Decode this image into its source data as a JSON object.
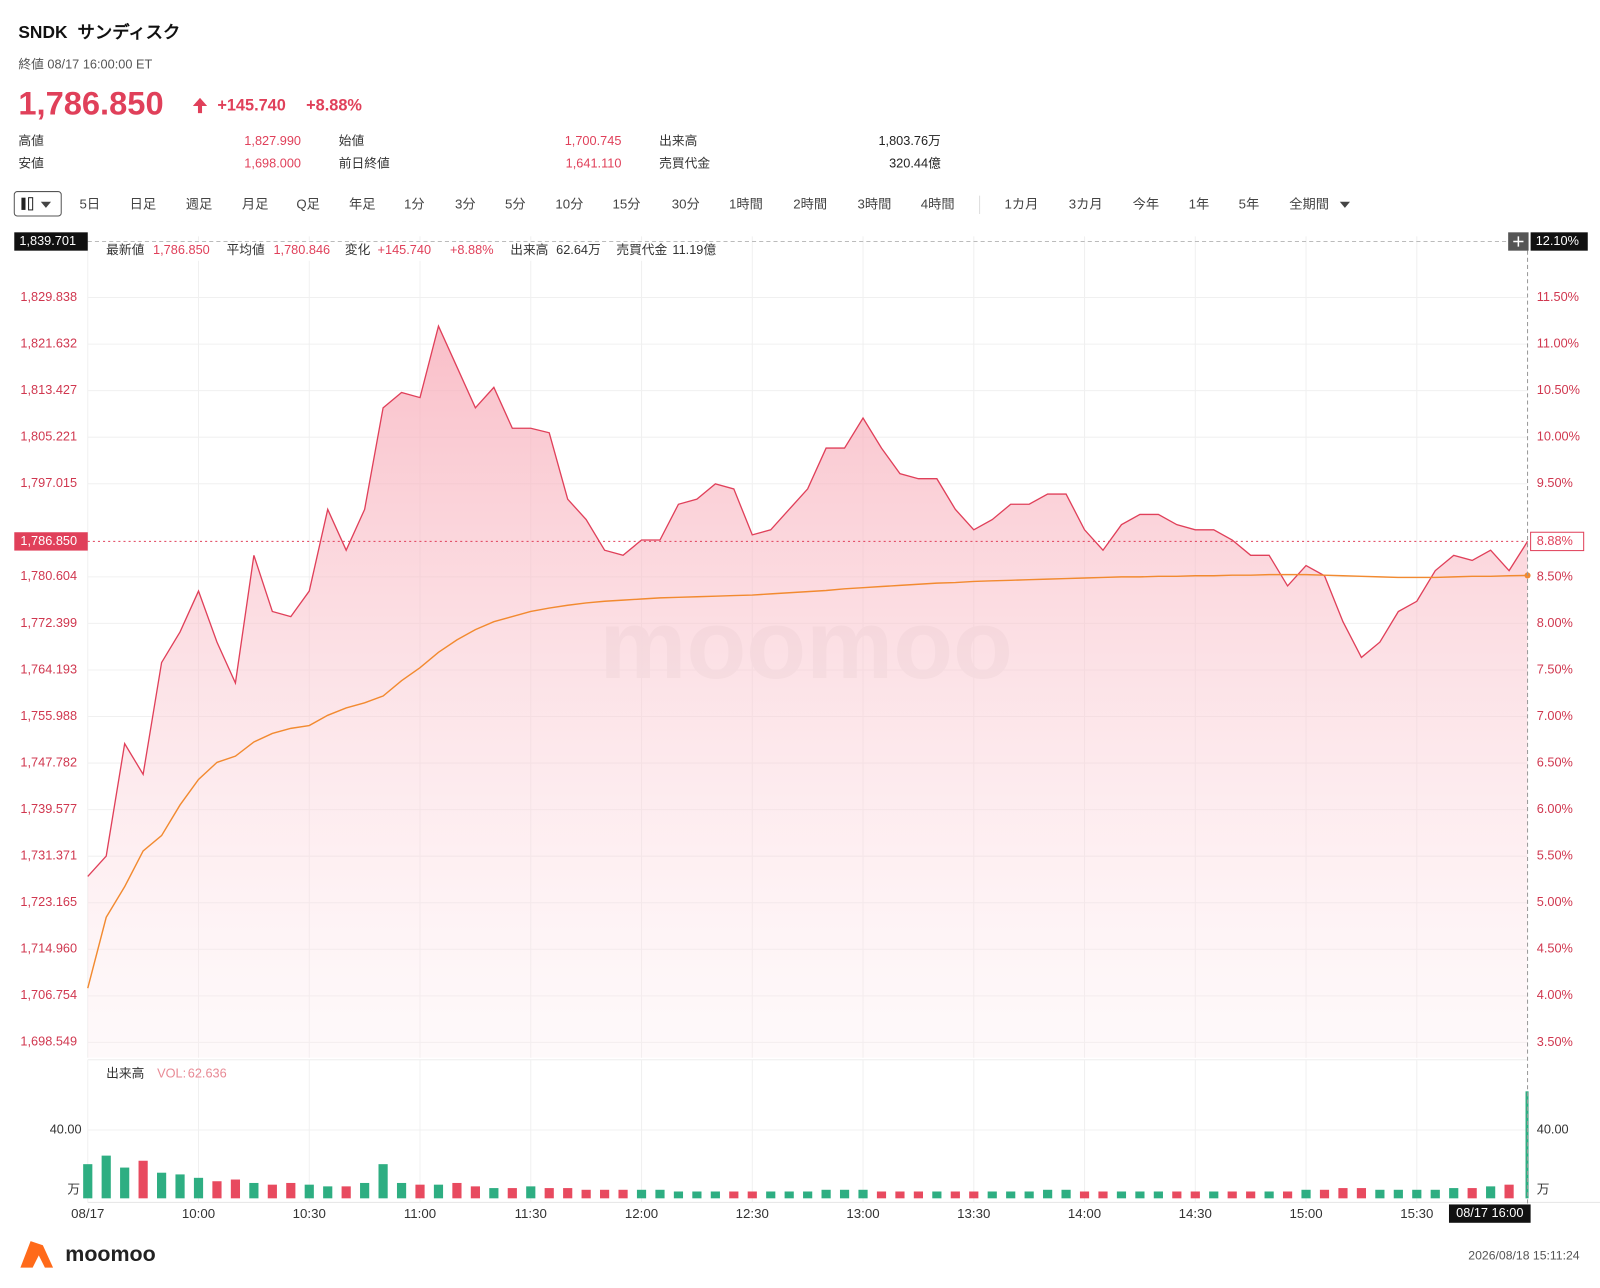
{
  "header": {
    "ticker": "SNDK",
    "name": "サンディスク",
    "status": "終値 08/17 16:00:00 ET",
    "price": "1,786.850",
    "change": "+145.740",
    "change_pct": "+8.88%"
  },
  "stats": [
    [
      {
        "label": "高値",
        "value": "1,827.990"
      },
      {
        "label": "始値",
        "value": "1,700.745"
      },
      {
        "label": "出来高",
        "value": "1,803.76万"
      }
    ],
    [
      {
        "label": "安値",
        "value": "1,698.000"
      },
      {
        "label": "前日終値",
        "value": "1,641.110"
      },
      {
        "label": "売買代金",
        "value": "320.44億"
      }
    ]
  ],
  "toolbar": {
    "intervals": [
      "5日",
      "日足",
      "週足",
      "月足",
      "Q足",
      "年足",
      "1分",
      "3分",
      "5分",
      "10分",
      "15分",
      "30分",
      "1時間",
      "2時間",
      "3時間",
      "4時間"
    ],
    "ranges": [
      "1カ月",
      "3カ月",
      "今年",
      "1年",
      "5年",
      "全期間"
    ]
  },
  "crosshair": {
    "price": "1,839.701",
    "pct": "12.10%",
    "time": "08/17 16:00"
  },
  "current_pct": "8.88%",
  "footer": {
    "brand": "moomoo",
    "timestamp": "2026/08/18 15:11:24"
  },
  "chart_data": [
    {
      "type": "line",
      "categories": [
        "09:30",
        "09:35",
        "09:40",
        "09:45",
        "09:50",
        "09:55",
        "10:00",
        "10:05",
        "10:10",
        "10:15",
        "10:20",
        "10:25",
        "10:30",
        "10:35",
        "10:40",
        "10:45",
        "10:50",
        "10:55",
        "11:00",
        "11:05",
        "11:10",
        "11:15",
        "11:20",
        "11:25",
        "11:30",
        "11:35",
        "11:40",
        "11:45",
        "11:50",
        "11:55",
        "12:00",
        "12:05",
        "12:10",
        "12:15",
        "12:20",
        "12:25",
        "12:30",
        "12:35",
        "12:40",
        "12:45",
        "12:50",
        "12:55",
        "13:00",
        "13:05",
        "13:10",
        "13:15",
        "13:20",
        "13:25",
        "13:30",
        "13:35",
        "13:40",
        "13:45",
        "13:50",
        "13:55",
        "14:00",
        "14:05",
        "14:10",
        "14:15",
        "14:20",
        "14:25",
        "14:30",
        "14:35",
        "14:40",
        "14:45",
        "14:50",
        "14:55",
        "15:00",
        "15:05",
        "15:10",
        "15:15",
        "15:20",
        "15:25",
        "15:30",
        "15:35",
        "15:40",
        "15:45",
        "15:50",
        "15:55",
        "16:00"
      ],
      "series": [
        {
          "name": "最新値",
          "color": "#e0405a",
          "values": [
            1727.8,
            1731.4,
            1751.2,
            1745.8,
            1765.5,
            1770.9,
            1778.1,
            1769.1,
            1761.9,
            1784.4,
            1774.5,
            1773.6,
            1778.1,
            1792.5,
            1785.3,
            1792.5,
            1810.4,
            1813.1,
            1812.2,
            1824.8,
            1817.6,
            1810.4,
            1814.0,
            1806.8,
            1806.8,
            1806.0,
            1794.3,
            1790.7,
            1785.3,
            1784.4,
            1787.1,
            1787.1,
            1793.4,
            1794.3,
            1797.0,
            1796.1,
            1788.0,
            1788.9,
            1792.5,
            1796.1,
            1803.3,
            1803.3,
            1808.6,
            1803.3,
            1798.8,
            1797.9,
            1797.9,
            1792.5,
            1788.9,
            1790.7,
            1793.4,
            1793.4,
            1795.2,
            1795.2,
            1788.9,
            1785.3,
            1789.8,
            1791.6,
            1791.6,
            1789.8,
            1788.9,
            1788.9,
            1787.1,
            1784.4,
            1784.4,
            1779.0,
            1782.6,
            1780.8,
            1772.7,
            1766.4,
            1769.1,
            1774.5,
            1776.3,
            1781.7,
            1784.4,
            1783.5,
            1785.3,
            1781.7,
            1786.85
          ]
        },
        {
          "name": "平均値",
          "color": "#f28a30",
          "values": [
            1708.1,
            1720.6,
            1726.0,
            1732.3,
            1735.0,
            1740.4,
            1744.9,
            1747.9,
            1749.0,
            1751.5,
            1753.0,
            1753.9,
            1754.4,
            1756.2,
            1757.5,
            1758.4,
            1759.6,
            1762.3,
            1764.6,
            1767.3,
            1769.5,
            1771.3,
            1772.7,
            1773.6,
            1774.5,
            1775.1,
            1775.6,
            1776.0,
            1776.3,
            1776.5,
            1776.7,
            1776.9,
            1777.0,
            1777.1,
            1777.2,
            1777.3,
            1777.4,
            1777.6,
            1777.8,
            1778.0,
            1778.2,
            1778.5,
            1778.7,
            1778.9,
            1779.1,
            1779.3,
            1779.5,
            1779.6,
            1779.8,
            1779.9,
            1780.0,
            1780.1,
            1780.2,
            1780.3,
            1780.4,
            1780.5,
            1780.6,
            1780.6,
            1780.7,
            1780.7,
            1780.8,
            1780.8,
            1780.9,
            1780.9,
            1781.0,
            1781.0,
            1781.0,
            1780.9,
            1780.8,
            1780.7,
            1780.6,
            1780.5,
            1780.5,
            1780.5,
            1780.6,
            1780.7,
            1780.7,
            1780.8,
            1780.846
          ]
        }
      ],
      "readout": {
        "last": "1,786.850",
        "avg": "1,780.846",
        "change_label": "変化",
        "change": "+145.740",
        "change_pct": "+8.88%",
        "vol_label": "出来高",
        "vol": "62.64万",
        "turnover_label": "売買代金",
        "turnover": "11.19億"
      },
      "ylim": [
        1695.85,
        1840.61
      ],
      "yticks": [
        {
          "value": 1698.549,
          "label": "1,698.549"
        },
        {
          "value": 1706.754,
          "label": "1,706.754"
        },
        {
          "value": 1714.96,
          "label": "1,714.960"
        },
        {
          "value": 1723.165,
          "label": "1,723.165"
        },
        {
          "value": 1731.371,
          "label": "1,731.371"
        },
        {
          "value": 1739.577,
          "label": "1,739.577"
        },
        {
          "value": 1747.782,
          "label": "1,747.782"
        },
        {
          "value": 1755.988,
          "label": "1,755.988"
        },
        {
          "value": 1764.193,
          "label": "1,764.193"
        },
        {
          "value": 1772.399,
          "label": "1,772.399"
        },
        {
          "value": 1780.604,
          "label": "1,780.604"
        },
        {
          "value": 1797.015,
          "label": "1,797.015"
        },
        {
          "value": 1805.221,
          "label": "1,805.221"
        },
        {
          "value": 1813.427,
          "label": "1,813.427"
        },
        {
          "value": 1821.632,
          "label": "1,821.632"
        },
        {
          "value": 1829.838,
          "label": "1,829.838"
        }
      ],
      "y2lim": [
        3.336,
        12.157
      ],
      "y2ticks": [
        {
          "value": 3.5,
          "label": "3.50%"
        },
        {
          "value": 4,
          "label": "4.00%"
        },
        {
          "value": 4.5,
          "label": "4.50%"
        },
        {
          "value": 5,
          "label": "5.00%"
        },
        {
          "value": 5.5,
          "label": "5.50%"
        },
        {
          "value": 6,
          "label": "6.00%"
        },
        {
          "value": 6.5,
          "label": "6.50%"
        },
        {
          "value": 7,
          "label": "7.00%"
        },
        {
          "value": 7.5,
          "label": "7.50%"
        },
        {
          "value": 8,
          "label": "8.00%"
        },
        {
          "value": 8.5,
          "label": "8.50%"
        },
        {
          "value": 9.5,
          "label": "9.50%"
        },
        {
          "value": 10,
          "label": "10.00%"
        },
        {
          "value": 10.5,
          "label": "10.50%"
        },
        {
          "value": 11,
          "label": "11.00%"
        },
        {
          "value": 11.5,
          "label": "11.50%"
        }
      ],
      "xticks": [
        {
          "value": "09:30",
          "label": "08/17"
        },
        "10:00",
        "10:30",
        "11:00",
        "11:30",
        "12:00",
        "12:30",
        "13:00",
        "13:30",
        "14:00",
        "14:30",
        "15:00",
        "15:30"
      ],
      "grid": true
    },
    {
      "type": "bar",
      "title": "出来高",
      "value_prefix": "VOL:",
      "unit": "万",
      "up_color": "#2eae82",
      "down_color": "#e84a5f",
      "values": [
        20,
        25,
        18,
        22,
        15,
        14,
        12,
        10,
        11,
        9,
        8,
        9,
        8,
        7,
        7,
        9,
        20,
        9,
        8,
        8,
        9,
        7,
        6,
        6,
        7,
        6,
        6,
        5,
        5,
        5,
        5,
        5,
        4,
        4,
        4,
        4,
        4,
        4,
        4,
        4,
        5,
        5,
        5,
        4,
        4,
        4,
        4,
        4,
        4,
        4,
        4,
        4,
        5,
        5,
        4,
        4,
        4,
        4,
        4,
        4,
        4,
        4,
        4,
        4,
        4,
        4,
        5,
        5,
        6,
        6,
        5,
        5,
        5,
        5,
        6,
        6,
        7,
        8,
        62.636
      ],
      "ylim": [
        0,
        68
      ],
      "yticks": [
        {
          "value": 40,
          "label": "40.00"
        }
      ],
      "grid": true
    }
  ]
}
